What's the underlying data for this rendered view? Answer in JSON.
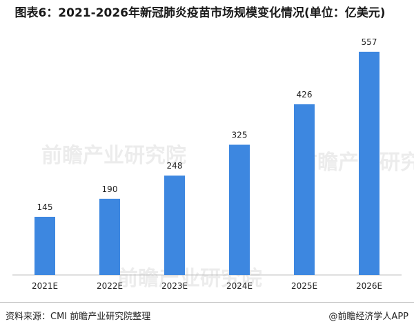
{
  "chart_data": {
    "type": "bar",
    "title": "图表6：2021-2026年新冠肺炎疫苗市场规模变化情况(单位：亿美元)",
    "categories": [
      "2021E",
      "2022E",
      "2023E",
      "2024E",
      "2025E",
      "2026E"
    ],
    "values": [
      145,
      190,
      248,
      325,
      426,
      557
    ],
    "xlabel": "",
    "ylabel": "",
    "ylim": [
      0,
      600
    ],
    "grid": false,
    "legend": "none",
    "bar_color": "#3d87e0"
  },
  "footer": {
    "source": "资料来源：CMI 前瞻产业研究院整理",
    "credit": "@前瞻经济学人APP"
  },
  "watermark": {
    "text": "前瞻产业研究院"
  }
}
